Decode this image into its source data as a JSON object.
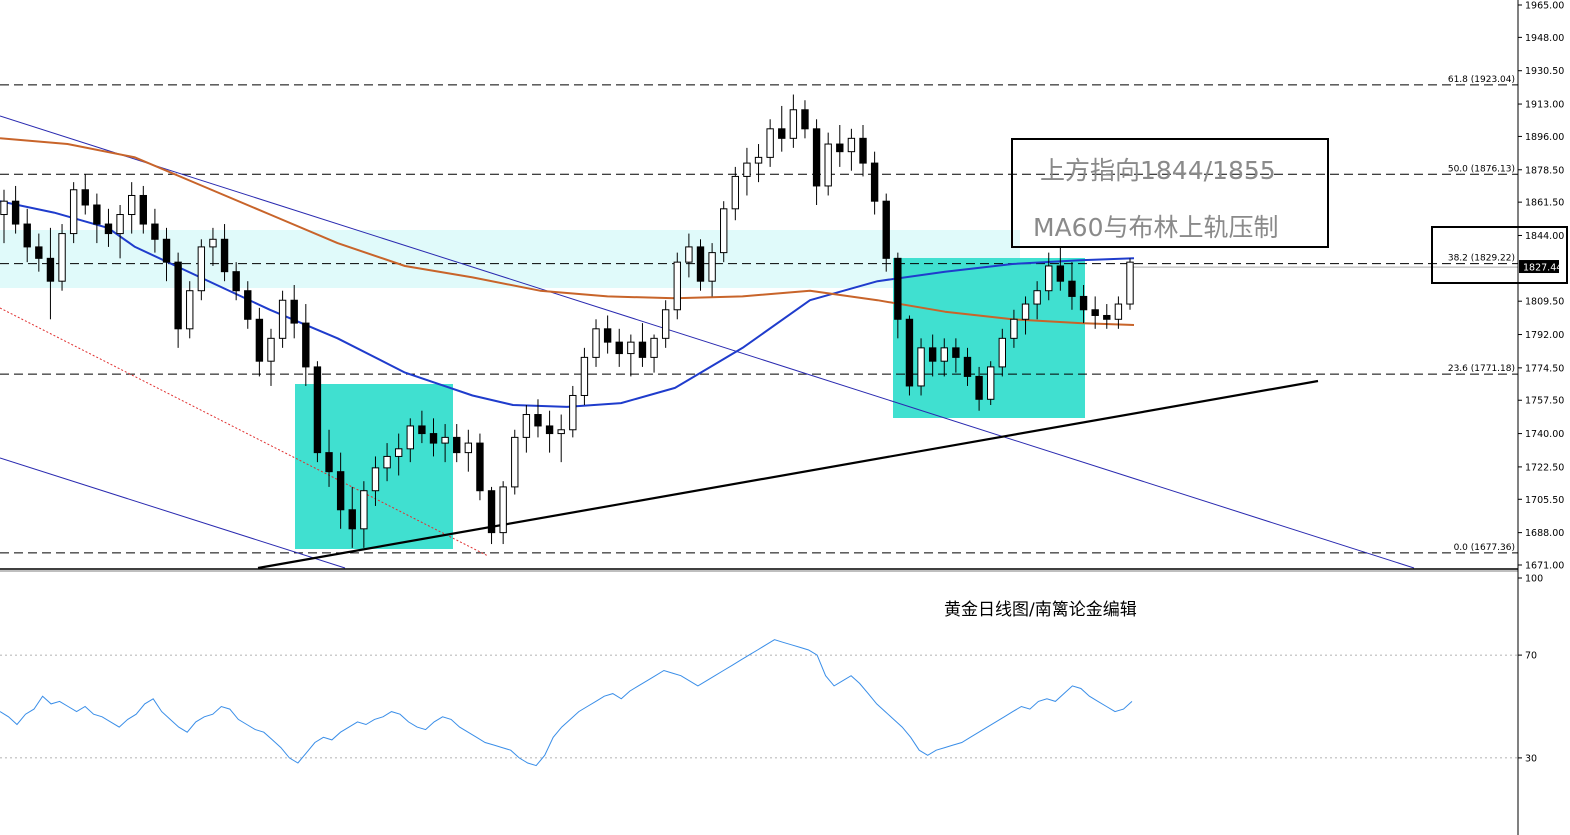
{
  "chart_data": [
    {
      "type": "candlestick",
      "symbol_timeframe": "",
      "price_axis": {
        "range": [
          1671.0,
          1965.0
        ],
        "ticks": [
          "1965.00",
          "1948.00",
          "1930.50",
          "1913.00",
          "1896.00",
          "1878.50",
          "1861.50",
          "1844.00",
          "1827.44",
          "1809.50",
          "1792.00",
          "1774.50",
          "1757.50",
          "1740.00",
          "1722.50",
          "1705.50",
          "1688.00",
          "1671.00"
        ],
        "tick_values": [
          1965.0,
          1948.0,
          1930.5,
          1913.0,
          1896.0,
          1878.5,
          1861.5,
          1844.0,
          1827.44,
          1809.5,
          1792.0,
          1774.5,
          1757.5,
          1740.0,
          1722.5,
          1705.5,
          1688.0,
          1671.0
        ],
        "current_price_label": "1827.44",
        "current_price": 1827.44
      },
      "fibonacci_levels": [
        {
          "label": "61.8 (1923.04)",
          "value": 1923.04
        },
        {
          "label": "50.0 (1876.13)",
          "value": 1876.13
        },
        {
          "label": "38.2 (1829.22)",
          "value": 1829.22
        },
        {
          "label": "23.6 (1771.18)",
          "value": 1771.18
        },
        {
          "label": "0.0 (1677.36)",
          "value": 1677.36
        }
      ],
      "candles": [
        [
          1855,
          1868,
          1840,
          1862
        ],
        [
          1862,
          1870,
          1845,
          1850
        ],
        [
          1850,
          1858,
          1830,
          1838
        ],
        [
          1838,
          1845,
          1825,
          1832
        ],
        [
          1832,
          1848,
          1800,
          1820
        ],
        [
          1820,
          1850,
          1815,
          1845
        ],
        [
          1845,
          1872,
          1840,
          1868
        ],
        [
          1868,
          1876,
          1855,
          1860
        ],
        [
          1860,
          1866,
          1840,
          1850
        ],
        [
          1850,
          1858,
          1838,
          1845
        ],
        [
          1845,
          1860,
          1832,
          1855
        ],
        [
          1855,
          1872,
          1845,
          1865
        ],
        [
          1865,
          1870,
          1845,
          1850
        ],
        [
          1850,
          1858,
          1835,
          1842
        ],
        [
          1842,
          1848,
          1820,
          1830
        ],
        [
          1830,
          1835,
          1785,
          1795
        ],
        [
          1795,
          1820,
          1790,
          1815
        ],
        [
          1815,
          1842,
          1810,
          1838
        ],
        [
          1838,
          1848,
          1828,
          1842
        ],
        [
          1842,
          1850,
          1820,
          1825
        ],
        [
          1825,
          1830,
          1810,
          1815
        ],
        [
          1815,
          1820,
          1795,
          1800
        ],
        [
          1800,
          1806,
          1770,
          1778
        ],
        [
          1778,
          1795,
          1765,
          1790
        ],
        [
          1790,
          1815,
          1785,
          1810
        ],
        [
          1810,
          1818,
          1790,
          1798
        ],
        [
          1798,
          1808,
          1765,
          1775
        ],
        [
          1775,
          1778,
          1725,
          1730
        ],
        [
          1730,
          1742,
          1712,
          1720
        ],
        [
          1720,
          1730,
          1690,
          1700
        ],
        [
          1700,
          1712,
          1680,
          1690
        ],
        [
          1690,
          1715,
          1680,
          1710
        ],
        [
          1710,
          1728,
          1702,
          1722
        ],
        [
          1722,
          1735,
          1715,
          1728
        ],
        [
          1728,
          1740,
          1718,
          1732
        ],
        [
          1732,
          1748,
          1725,
          1744
        ],
        [
          1744,
          1752,
          1735,
          1740
        ],
        [
          1740,
          1748,
          1728,
          1735
        ],
        [
          1735,
          1745,
          1725,
          1738
        ],
        [
          1738,
          1745,
          1725,
          1730
        ],
        [
          1730,
          1742,
          1720,
          1735
        ],
        [
          1735,
          1740,
          1705,
          1710
        ],
        [
          1710,
          1712,
          1682,
          1688
        ],
        [
          1688,
          1715,
          1682,
          1712
        ],
        [
          1712,
          1742,
          1708,
          1738
        ],
        [
          1738,
          1755,
          1730,
          1750
        ],
        [
          1750,
          1758,
          1738,
          1744
        ],
        [
          1744,
          1752,
          1730,
          1740
        ],
        [
          1740,
          1750,
          1725,
          1742
        ],
        [
          1742,
          1765,
          1738,
          1760
        ],
        [
          1760,
          1785,
          1755,
          1780
        ],
        [
          1780,
          1800,
          1775,
          1795
        ],
        [
          1795,
          1802,
          1782,
          1788
        ],
        [
          1788,
          1795,
          1775,
          1782
        ],
        [
          1782,
          1792,
          1770,
          1788
        ],
        [
          1788,
          1798,
          1775,
          1780
        ],
        [
          1780,
          1792,
          1772,
          1790
        ],
        [
          1790,
          1810,
          1785,
          1805
        ],
        [
          1805,
          1835,
          1800,
          1830
        ],
        [
          1830,
          1845,
          1822,
          1838
        ],
        [
          1838,
          1842,
          1815,
          1820
        ],
        [
          1820,
          1840,
          1812,
          1835
        ],
        [
          1835,
          1862,
          1830,
          1858
        ],
        [
          1858,
          1880,
          1852,
          1875
        ],
        [
          1875,
          1890,
          1865,
          1882
        ],
        [
          1882,
          1892,
          1872,
          1885
        ],
        [
          1885,
          1905,
          1880,
          1900
        ],
        [
          1900,
          1912,
          1888,
          1895
        ],
        [
          1895,
          1918,
          1890,
          1910
        ],
        [
          1910,
          1915,
          1895,
          1900
        ],
        [
          1900,
          1905,
          1860,
          1870
        ],
        [
          1870,
          1898,
          1865,
          1892
        ],
        [
          1892,
          1902,
          1880,
          1888
        ],
        [
          1888,
          1900,
          1878,
          1895
        ],
        [
          1895,
          1902,
          1875,
          1882
        ],
        [
          1882,
          1888,
          1855,
          1862
        ],
        [
          1862,
          1866,
          1825,
          1832
        ],
        [
          1832,
          1835,
          1790,
          1800
        ],
        [
          1800,
          1802,
          1760,
          1765
        ],
        [
          1765,
          1790,
          1760,
          1785
        ],
        [
          1785,
          1792,
          1770,
          1778
        ],
        [
          1778,
          1790,
          1770,
          1785
        ],
        [
          1785,
          1790,
          1772,
          1780
        ],
        [
          1780,
          1785,
          1765,
          1770
        ],
        [
          1770,
          1775,
          1752,
          1758
        ],
        [
          1758,
          1778,
          1755,
          1775
        ],
        [
          1775,
          1795,
          1770,
          1790
        ],
        [
          1790,
          1805,
          1785,
          1800
        ],
        [
          1800,
          1812,
          1792,
          1808
        ],
        [
          1808,
          1820,
          1800,
          1815
        ],
        [
          1815,
          1835,
          1810,
          1828
        ],
        [
          1828,
          1838,
          1815,
          1820
        ],
        [
          1820,
          1830,
          1805,
          1812
        ],
        [
          1812,
          1818,
          1798,
          1805
        ],
        [
          1805,
          1812,
          1795,
          1802
        ],
        [
          1802,
          1808,
          1795,
          1800
        ],
        [
          1800,
          1812,
          1795,
          1808
        ],
        [
          1808,
          1832,
          1805,
          1830
        ]
      ],
      "moving_averages": [
        {
          "key": "blue",
          "color": "#1f3ccc",
          "values": [
            [
              0,
              1862
            ],
            [
              0.04,
              1856
            ],
            [
              0.08,
              1848
            ],
            [
              0.1,
              1838
            ],
            [
              0.2,
              1805
            ],
            [
              0.25,
              1790
            ],
            [
              0.3,
              1772
            ],
            [
              0.35,
              1760
            ],
            [
              0.38,
              1755
            ],
            [
              0.42,
              1754
            ],
            [
              0.46,
              1756
            ],
            [
              0.5,
              1764
            ],
            [
              0.55,
              1785
            ],
            [
              0.6,
              1810
            ],
            [
              0.65,
              1820
            ],
            [
              0.7,
              1825
            ],
            [
              0.75,
              1829
            ],
            [
              0.8,
              1831
            ],
            [
              0.84,
              1832
            ]
          ]
        },
        {
          "key": "orange",
          "color": "#c8642a",
          "values": [
            [
              0,
              1895
            ],
            [
              0.05,
              1892
            ],
            [
              0.1,
              1885
            ],
            [
              0.15,
              1870
            ],
            [
              0.2,
              1855
            ],
            [
              0.25,
              1840
            ],
            [
              0.3,
              1828
            ],
            [
              0.35,
              1822
            ],
            [
              0.4,
              1815
            ],
            [
              0.45,
              1812
            ],
            [
              0.5,
              1811
            ],
            [
              0.55,
              1812
            ],
            [
              0.6,
              1815
            ],
            [
              0.65,
              1810
            ],
            [
              0.7,
              1804
            ],
            [
              0.75,
              1800
            ],
            [
              0.8,
              1798
            ],
            [
              0.84,
              1797
            ]
          ]
        }
      ],
      "annotations": [
        {
          "text": "上方指向1844/1855"
        },
        {
          "text": "MA60与布林上轨压制"
        }
      ],
      "grid": false
    },
    {
      "type": "line",
      "title": "黄金日线图/南篱论金编辑",
      "yaxis": {
        "range": [
          0,
          100
        ],
        "ticks": [
          "100",
          "70",
          "30"
        ],
        "tick_values": [
          100,
          70,
          30
        ]
      },
      "levels": [
        70,
        30
      ],
      "values": [
        48,
        46,
        43,
        47,
        49,
        54,
        51,
        52,
        50,
        48,
        50,
        47,
        46,
        44,
        42,
        45,
        47,
        51,
        53,
        48,
        45,
        42,
        40,
        44,
        46,
        47,
        50,
        49,
        45,
        43,
        41,
        40,
        37,
        34,
        30,
        28,
        32,
        36,
        38,
        37,
        40,
        42,
        44,
        43,
        45,
        46,
        48,
        47,
        44,
        42,
        41,
        44,
        46,
        45,
        42,
        40,
        38,
        36,
        35,
        34,
        33,
        30,
        28,
        27,
        31,
        38,
        42,
        45,
        48,
        50,
        52,
        54,
        55,
        53,
        56,
        58,
        60,
        62,
        64,
        63,
        62,
        60,
        58,
        60,
        62,
        64,
        66,
        68,
        70,
        72,
        74,
        76,
        75,
        74,
        73,
        72,
        70,
        62,
        58,
        60,
        62,
        59,
        55,
        51,
        48,
        45,
        42,
        38,
        33,
        31,
        33,
        34,
        35,
        36,
        38,
        40,
        42,
        44,
        46,
        48,
        50,
        49,
        52,
        53,
        52,
        55,
        58,
        57,
        54,
        52,
        50,
        48,
        49,
        52
      ]
    }
  ]
}
